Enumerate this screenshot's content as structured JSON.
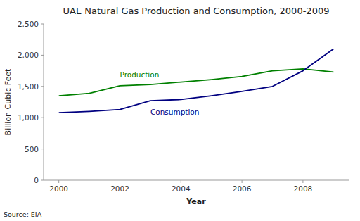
{
  "chart_data": {
    "type": "line",
    "title": "UAE Natural Gas Production and Consumption, 2000-2009",
    "x_label": "Year",
    "y_label": "Billion Cubic Feet",
    "source": "Source: EIA",
    "x": [
      2000,
      2001,
      2002,
      2003,
      2004,
      2005,
      2006,
      2007,
      2008,
      2009
    ],
    "series": [
      {
        "name": "Production",
        "color": "#008000",
        "values": [
          1350,
          1390,
          1510,
          1530,
          1570,
          1610,
          1660,
          1750,
          1780,
          1730
        ]
      },
      {
        "name": "Consumption",
        "color": "#000080",
        "values": [
          1080,
          1100,
          1130,
          1270,
          1290,
          1350,
          1420,
          1500,
          1750,
          2100
        ]
      }
    ],
    "xlim": [
      1999.5,
      2009.5
    ],
    "xticks": [
      2000,
      2002,
      2004,
      2006,
      2008
    ],
    "ylim": [
      0,
      2500
    ],
    "yticks": [
      0,
      500,
      {
        "value": 1000,
        "label": "1,000"
      },
      {
        "value": 1500,
        "label": "1,500"
      },
      {
        "value": 2000,
        "label": "2,000"
      },
      {
        "value": 2500,
        "label": "2,500"
      }
    ],
    "grid": false
  }
}
